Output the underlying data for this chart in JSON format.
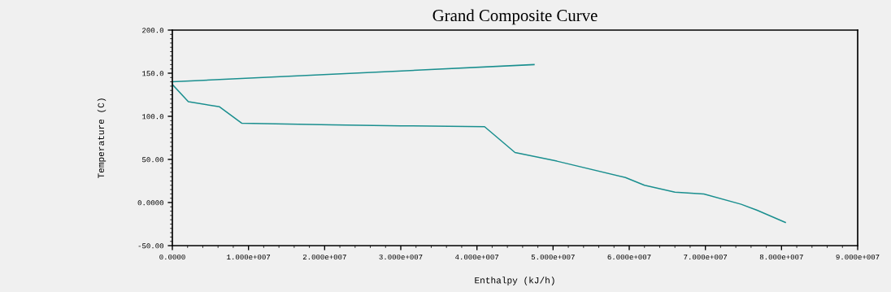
{
  "chart_data": {
    "type": "line",
    "title": "Grand Composite Curve",
    "xlabel": "Enthalpy (kJ/h)",
    "ylabel": "Temperature (C)",
    "xlim": [
      0,
      90000000
    ],
    "ylim": [
      -50,
      200
    ],
    "xticks": [
      {
        "value": 0,
        "label": "0.0000"
      },
      {
        "value": 10000000,
        "label": "1.000e+007"
      },
      {
        "value": 20000000,
        "label": "2.000e+007"
      },
      {
        "value": 30000000,
        "label": "3.000e+007"
      },
      {
        "value": 40000000,
        "label": "4.000e+007"
      },
      {
        "value": 50000000,
        "label": "5.000e+007"
      },
      {
        "value": 60000000,
        "label": "6.000e+007"
      },
      {
        "value": 70000000,
        "label": "7.000e+007"
      },
      {
        "value": 80000000,
        "label": "8.000e+007"
      },
      {
        "value": 90000000,
        "label": "9.000e+007"
      }
    ],
    "yticks": [
      {
        "value": -50,
        "label": "-50.00"
      },
      {
        "value": 0,
        "label": "0.0000"
      },
      {
        "value": 50,
        "label": "50.00"
      },
      {
        "value": 100,
        "label": "100.0"
      },
      {
        "value": 150,
        "label": "150.0"
      },
      {
        "value": 200,
        "label": "200.0"
      }
    ],
    "grid": false,
    "marker": "none",
    "line_style": "solid",
    "series": [
      {
        "color": "#1a8f8f",
        "x": [
          0,
          47500000
        ],
        "values": [
          140,
          160
        ]
      },
      {
        "color": "#1a8f8f",
        "x": [
          0,
          2100000,
          6200000,
          9100000,
          21000000,
          30000000,
          41000000,
          45000000,
          50500000,
          59500000,
          62000000,
          66000000,
          69800000,
          74700000,
          76800000,
          80500000
        ],
        "values": [
          137,
          117,
          111,
          92,
          90,
          89,
          88,
          58,
          48,
          29,
          20,
          12,
          10,
          -2,
          -9,
          -23
        ]
      }
    ]
  }
}
